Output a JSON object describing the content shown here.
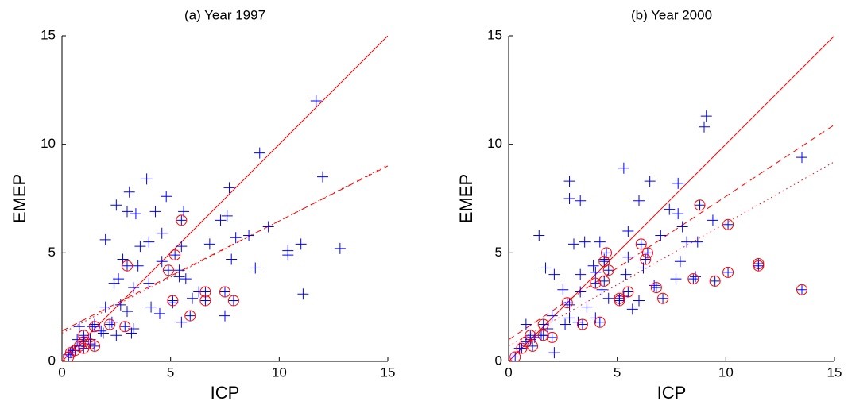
{
  "chart_data": [
    {
      "type": "scatter",
      "title": "(a) Year 1997",
      "x_label": "ICP",
      "y_label": "EMEP",
      "xlim": [
        0,
        15
      ],
      "ylim": [
        0,
        15
      ],
      "xticks": [
        0,
        5,
        10,
        15
      ],
      "yticks": [
        0,
        5,
        10,
        15
      ],
      "series": [
        {
          "marker": "plus",
          "color": "#0000ff",
          "x": [
            11.7,
            9.1,
            12.0,
            3.9,
            7.7,
            3.1,
            4.8,
            2.5,
            3.0,
            3.4,
            4.3,
            5.6,
            7.6,
            7.3,
            2.0,
            3.6,
            4.0,
            4.6,
            5.5,
            6.8,
            8.0,
            8.6,
            9.5,
            11.0,
            12.8,
            10.4,
            10.4,
            2.8,
            3.5,
            4.6,
            5.4,
            5.7,
            7.8,
            8.9,
            2.6,
            2.4,
            3.3,
            4.0,
            5.4,
            6.3,
            7.5,
            6.0,
            2.7,
            4.1,
            4.5,
            5.1,
            11.1,
            2.0,
            1.5,
            2.3,
            3.3,
            1.8,
            2.5,
            1.0,
            0.8,
            1.3,
            0.7,
            0.5,
            0.3,
            1.4,
            1.9,
            3.2,
            5.5,
            3.0
          ],
          "values": [
            12.0,
            9.6,
            8.5,
            8.4,
            8.0,
            7.8,
            7.6,
            7.2,
            6.9,
            6.8,
            6.9,
            6.9,
            6.7,
            6.5,
            5.6,
            5.3,
            5.5,
            5.9,
            5.3,
            5.4,
            5.7,
            5.8,
            6.2,
            5.4,
            5.2,
            5.1,
            4.9,
            4.7,
            4.4,
            4.6,
            4.2,
            3.8,
            4.7,
            4.3,
            3.8,
            3.6,
            3.4,
            3.6,
            3.9,
            3.2,
            2.1,
            2.9,
            2.6,
            2.5,
            2.2,
            2.7,
            3.1,
            2.5,
            1.7,
            1.8,
            1.5,
            1.4,
            1.2,
            1.1,
            1.6,
            1.0,
            1.0,
            0.5,
            0.3,
            1.6,
            1.3,
            1.3,
            1.8,
            2.3
          ]
        },
        {
          "marker": "circle",
          "color": "#ff0000",
          "x": [
            5.5,
            3.0,
            5.2,
            4.9,
            5.1,
            6.6,
            6.6,
            7.5,
            7.9,
            5.9,
            2.9,
            2.2,
            1.5,
            1.0,
            1.0,
            1.3,
            1.5,
            1.0,
            0.6,
            0.4,
            0.3,
            0.8
          ],
          "values": [
            6.5,
            4.4,
            4.9,
            4.2,
            2.8,
            3.2,
            2.8,
            3.2,
            2.8,
            2.1,
            1.6,
            1.7,
            1.6,
            1.2,
            0.9,
            0.8,
            0.7,
            0.6,
            0.5,
            0.4,
            0.2,
            0.7
          ]
        }
      ],
      "lines": [
        {
          "color": "#ff0000",
          "style": "solid",
          "x": [
            0,
            15
          ],
          "values": [
            0,
            15
          ]
        },
        {
          "color": "#ff0000",
          "style": "dashed",
          "x": [
            0,
            15
          ],
          "values": [
            1.4,
            9.0
          ]
        },
        {
          "color": "#ff0000",
          "style": "dotted",
          "x": [
            0,
            15
          ],
          "values": [
            1.3,
            9.05
          ]
        }
      ]
    },
    {
      "type": "scatter",
      "title": "(b) Year 2000",
      "x_label": "ICP",
      "y_label": "EMEP",
      "xlim": [
        0,
        15
      ],
      "ylim": [
        0,
        15
      ],
      "xticks": [
        0,
        5,
        10,
        15
      ],
      "yticks": [
        0,
        5,
        10,
        15
      ],
      "series": [
        {
          "marker": "plus",
          "color": "#0000ff",
          "x": [
            9.1,
            9.0,
            13.5,
            5.3,
            2.8,
            6.5,
            7.8,
            2.8,
            3.3,
            6.0,
            7.4,
            7.8,
            8.0,
            9.4,
            1.4,
            3.0,
            3.5,
            4.2,
            5.5,
            7.0,
            8.2,
            8.7,
            3.9,
            4.4,
            5.5,
            6.2,
            7.9,
            1.7,
            2.1,
            3.3,
            4.0,
            5.4,
            6.7,
            7.7,
            8.6,
            2.5,
            3.3,
            4.3,
            5.3,
            6.0,
            2.8,
            3.6,
            4.6,
            5.7,
            2.0,
            2.8,
            3.2,
            4.0,
            1.5,
            2.1,
            1.0,
            0.8,
            1.2,
            0.5,
            0.2,
            2.6,
            1.8
          ],
          "values": [
            11.3,
            10.8,
            9.4,
            8.9,
            8.3,
            8.3,
            8.2,
            7.5,
            7.4,
            7.4,
            7.0,
            6.8,
            6.2,
            6.5,
            5.8,
            5.4,
            5.5,
            5.5,
            6.0,
            5.8,
            5.5,
            5.5,
            4.4,
            4.7,
            4.8,
            4.3,
            4.6,
            4.3,
            4.0,
            4.0,
            4.1,
            4.0,
            3.5,
            3.8,
            3.9,
            3.3,
            3.2,
            3.3,
            3.0,
            2.8,
            2.6,
            2.5,
            2.9,
            2.4,
            2.1,
            2.0,
            1.8,
            2.0,
            1.2,
            0.4,
            1.0,
            1.7,
            1.1,
            0.6,
            0.2,
            1.7,
            1.5
          ]
        },
        {
          "marker": "circle",
          "color": "#ff0000",
          "x": [
            8.8,
            10.1,
            6.1,
            4.5,
            6.4,
            4.4,
            4.6,
            6.3,
            4.0,
            4.4,
            6.8,
            7.1,
            5.5,
            8.5,
            9.5,
            10.1,
            11.5,
            11.5,
            13.5,
            5.1,
            5.1,
            2.7,
            3.4,
            4.2,
            1.6,
            2.0,
            1.6,
            1.0,
            0.8,
            0.6,
            0.3,
            1.1
          ],
          "values": [
            7.2,
            6.3,
            5.4,
            5.0,
            5.0,
            4.6,
            4.2,
            4.7,
            3.6,
            3.7,
            3.4,
            2.9,
            3.2,
            3.8,
            3.7,
            4.1,
            4.5,
            4.4,
            3.3,
            2.9,
            2.8,
            2.7,
            1.7,
            1.8,
            1.7,
            1.1,
            1.2,
            1.2,
            0.9,
            0.6,
            0.2,
            0.7
          ]
        }
      ],
      "lines": [
        {
          "color": "#ff0000",
          "style": "solid",
          "x": [
            0,
            15
          ],
          "values": [
            0,
            15
          ]
        },
        {
          "color": "#ff0000",
          "style": "dashed",
          "x": [
            0,
            15
          ],
          "values": [
            1.0,
            10.9
          ]
        },
        {
          "color": "#ff0000",
          "style": "dotted",
          "x": [
            0,
            15
          ],
          "values": [
            0.7,
            9.2
          ]
        }
      ]
    }
  ]
}
